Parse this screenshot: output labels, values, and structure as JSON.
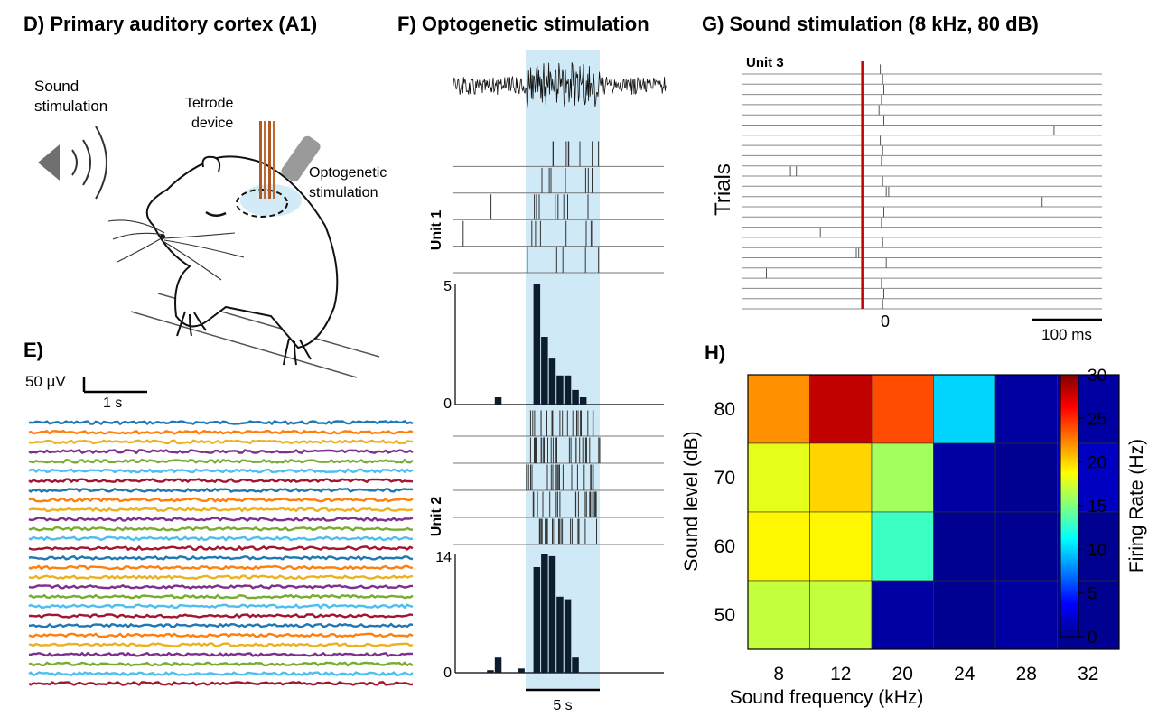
{
  "panels": {
    "D": {
      "title": "D) Primary auditory cortex (A1)",
      "sound_label_1": "Sound",
      "sound_label_2": "stimulation",
      "tetrode_label_1": "Tetrode",
      "tetrode_label_2": "device",
      "opto_label_1": "Optogenetic",
      "opto_label_2": "stimulation"
    },
    "E": {
      "title": "E)",
      "scale_voltage": "50 µV",
      "scale_time": "1 s",
      "trace_colors": [
        "#1f77b4",
        "#ff7f0e",
        "#edb120",
        "#7e2f8e",
        "#77ac30",
        "#4dbeee",
        "#a2142f"
      ],
      "trace_count": 28
    },
    "F": {
      "title": "F) Optogenetic stimulation",
      "unit1_label": "Unit 1",
      "unit2_label": "Unit 2",
      "hist1_ymax_label": "5",
      "hist1_ymin_label": "0",
      "hist2_ymax_label": "14",
      "hist2_ymin_label": "0",
      "scale_label": "5 s",
      "stim_color": "#cfe9f7"
    },
    "G": {
      "title": "G) Sound stimulation (8 kHz, 80 dB)",
      "unit_label": "Unit 3",
      "ylabel": "Trials",
      "zero_label": "0",
      "scale_label": "100 ms",
      "onset_color": "#c00000"
    },
    "H": {
      "title": "H)"
    }
  },
  "chart_data": [
    {
      "panel": "F-unit1-psth",
      "type": "bar",
      "x": [
        -3.5,
        -3.0,
        -2.5,
        -2.0,
        -1.5,
        -1.0,
        -0.5,
        0.0,
        0.5,
        1.0,
        1.5,
        2.0,
        2.5,
        3.0,
        3.5,
        4.0,
        4.5,
        5.0,
        5.5,
        6.0,
        6.5,
        7.0
      ],
      "values": [
        0,
        0,
        0.3,
        0,
        0,
        0,
        0,
        5.0,
        2.8,
        1.9,
        1.2,
        1.2,
        0.6,
        0.3,
        0,
        0,
        0,
        0,
        0,
        0,
        0,
        0
      ],
      "ylim": [
        0,
        5
      ],
      "stim_window": [
        0,
        5
      ]
    },
    {
      "panel": "F-unit2-psth",
      "type": "bar",
      "x": [
        -3.5,
        -3.0,
        -2.5,
        -2.0,
        -1.5,
        -1.0,
        -0.5,
        0.0,
        0.5,
        1.0,
        1.5,
        2.0,
        2.5,
        3.0,
        3.5,
        4.0,
        4.5,
        5.0,
        5.5,
        6.0,
        6.5,
        7.0
      ],
      "values": [
        0,
        0.3,
        1.8,
        0,
        0,
        0.5,
        0,
        12.5,
        14.0,
        13.8,
        9.0,
        8.7,
        1.8,
        0,
        0,
        0,
        0,
        0,
        0,
        0,
        0,
        0
      ],
      "ylim": [
        0,
        14
      ],
      "stim_window": [
        0,
        5
      ]
    },
    {
      "panel": "G-raster",
      "type": "scatter",
      "ylabel": "Trials",
      "xlabel": "",
      "trial_spikes_ms": [
        [
          15
        ],
        [
          17
        ],
        [
          18
        ],
        [
          16
        ],
        [
          14
        ],
        [
          18
        ],
        [
          160
        ],
        [
          15
        ],
        [
          17
        ],
        [
          16
        ],
        [
          -60,
          -55
        ],
        [
          17
        ],
        [
          20,
          22
        ],
        [
          150
        ],
        [
          18
        ],
        [
          16
        ],
        [
          -35
        ],
        [
          17
        ],
        [
          -5,
          -3
        ],
        [
          20
        ],
        [
          -80
        ],
        [
          16
        ],
        [
          18
        ],
        [
          17
        ]
      ],
      "xlim": [
        -100,
        200
      ]
    },
    {
      "panel": "H-tuning",
      "type": "heatmap",
      "xlabel": "Sound frequency (kHz)",
      "ylabel": "Sound level (dB)",
      "x_categories": [
        "8",
        "12",
        "20",
        "24",
        "28",
        "32"
      ],
      "y_categories": [
        "80",
        "70",
        "60",
        "50"
      ],
      "values": [
        [
          22,
          28,
          24,
          10,
          1,
          1
        ],
        [
          18,
          20,
          16,
          1,
          0.5,
          2
        ],
        [
          19,
          19,
          13,
          0.5,
          0.5,
          0.5
        ],
        [
          17,
          17,
          1,
          0.5,
          1,
          0.5
        ]
      ],
      "colorbar_label": "Firing Rate (Hz)",
      "colorbar_ticks": [
        "0",
        "5",
        "10",
        "15",
        "20",
        "25",
        "30"
      ],
      "clim": [
        0,
        30
      ],
      "colormap": "jet"
    }
  ]
}
